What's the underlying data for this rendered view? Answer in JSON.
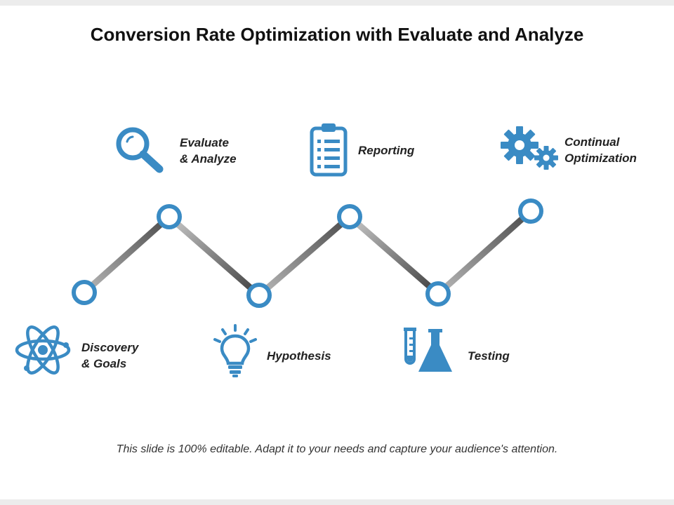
{
  "title": "Conversion Rate Optimization with Evaluate and Analyze",
  "accent_color": "#3a8bc4",
  "steps": [
    {
      "line1": "Discovery",
      "line2": "& Goals",
      "icon": "atom-icon"
    },
    {
      "line1": "Evaluate",
      "line2": "& Analyze",
      "icon": "magnifier-icon"
    },
    {
      "line1": "Hypothesis",
      "line2": "",
      "icon": "lightbulb-icon"
    },
    {
      "line1": "Reporting",
      "line2": "",
      "icon": "clipboard-icon"
    },
    {
      "line1": "Testing",
      "line2": "",
      "icon": "lab-flask-icon"
    },
    {
      "line1": "Continual",
      "line2": "Optimization",
      "icon": "gears-icon"
    }
  ],
  "footer": "This slide is 100% editable. Adapt it to your needs and capture your audience's attention."
}
